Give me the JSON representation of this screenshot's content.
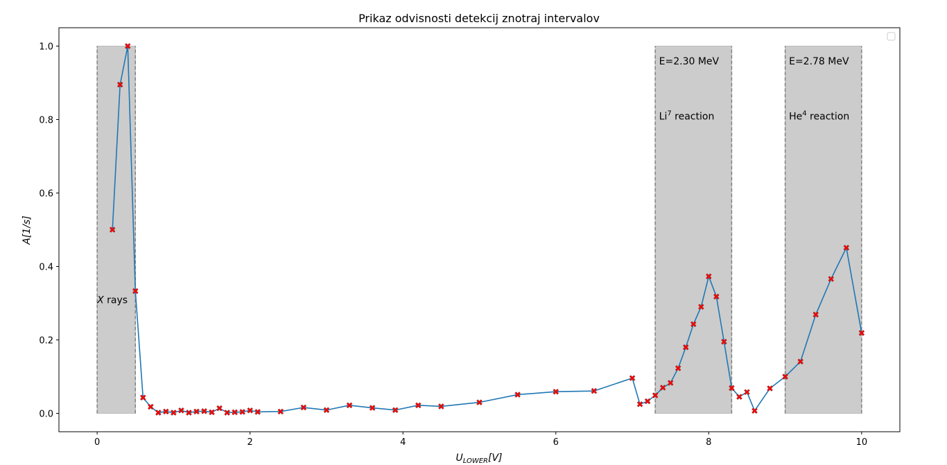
{
  "chart_data": {
    "type": "line",
    "title": "Prikaz odvisnosti detekcij znotraj intervalov",
    "xlabel": "U_LOWER[V]",
    "ylabel": "A[1/s]",
    "xlim": [
      -0.5,
      10.5
    ],
    "ylim": [
      -0.05,
      1.05
    ],
    "xticks": [
      0,
      2,
      4,
      6,
      8,
      10
    ],
    "yticks": [
      0.0,
      0.2,
      0.4,
      0.6,
      0.8,
      1.0
    ],
    "xtick_labels": [
      "0",
      "2",
      "4",
      "6",
      "8",
      "10"
    ],
    "ytick_labels": [
      "0.0",
      "0.2",
      "0.4",
      "0.6",
      "0.8",
      "1.0"
    ],
    "grid": false,
    "legend": "top-right (empty)",
    "line_color": "#1f77b4",
    "marker_color": "#ff0000",
    "shade_color": "#cccccc",
    "boundary_color": "#808080",
    "x": [
      0.2,
      0.3,
      0.4,
      0.5,
      0.6,
      0.7,
      0.8,
      0.9,
      1.0,
      1.1,
      1.2,
      1.3,
      1.4,
      1.5,
      1.6,
      1.7,
      1.8,
      1.9,
      2.0,
      2.1,
      2.4,
      2.7,
      3.0,
      3.3,
      3.6,
      3.9,
      4.2,
      4.5,
      5.0,
      5.5,
      6.0,
      6.5,
      7.0,
      7.1,
      7.2,
      7.3,
      7.4,
      7.5,
      7.6,
      7.7,
      7.8,
      7.9,
      8.0,
      8.1,
      8.2,
      8.3,
      8.4,
      8.5,
      8.6,
      8.8,
      9.0,
      9.2,
      9.4,
      9.6,
      9.8,
      10.0
    ],
    "y": [
      0.5,
      0.895,
      1.0,
      0.333,
      0.043,
      0.018,
      0.002,
      0.005,
      0.002,
      0.008,
      0.002,
      0.005,
      0.006,
      0.003,
      0.014,
      0.002,
      0.003,
      0.004,
      0.008,
      0.004,
      0.005,
      0.016,
      0.009,
      0.022,
      0.015,
      0.009,
      0.022,
      0.019,
      0.03,
      0.051,
      0.059,
      0.061,
      0.096,
      0.025,
      0.033,
      0.049,
      0.07,
      0.083,
      0.123,
      0.18,
      0.243,
      0.29,
      0.373,
      0.318,
      0.195,
      0.069,
      0.045,
      0.058,
      0.007,
      0.068,
      0.1,
      0.141,
      0.269,
      0.366,
      0.451,
      0.219
    ],
    "regions": [
      {
        "x0": 0.0,
        "x1": 0.5,
        "ymax": 1.0
      },
      {
        "x0": 7.3,
        "x1": 8.3,
        "ymax": 1.0
      },
      {
        "x0": 9.0,
        "x1": 10.0,
        "ymax": 1.0
      }
    ],
    "annotations": [
      {
        "text": "X rays",
        "x": 0.0,
        "y": 0.3
      },
      {
        "text": "E=2.30 MeV",
        "x": 7.35,
        "y": 0.95
      },
      {
        "text": "Li7 reaction",
        "x": 7.35,
        "y": 0.8
      },
      {
        "text": "E=2.78 MeV",
        "x": 9.05,
        "y": 0.95
      },
      {
        "text": "He4 reaction",
        "x": 9.05,
        "y": 0.8
      }
    ]
  }
}
